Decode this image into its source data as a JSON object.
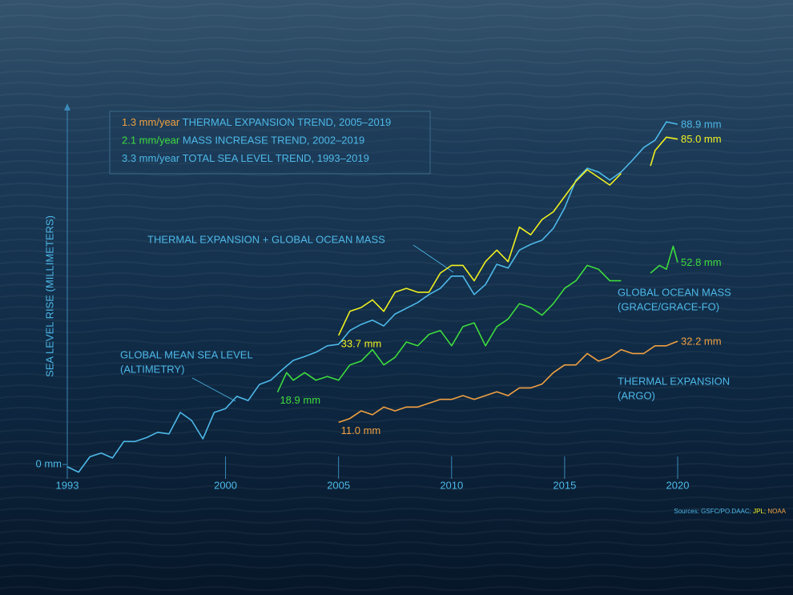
{
  "chart_data": {
    "type": "line",
    "y_label": "SEA LEVEL RISE (MILLIMETERS)",
    "xlim": [
      1993,
      2020
    ],
    "xticks": [
      1993,
      2000,
      2005,
      2010,
      2015,
      2020
    ],
    "ylim": [
      -5,
      94
    ],
    "yticks": [
      {
        "value": 0,
        "label": "0 mm"
      }
    ],
    "legend": [
      {
        "rate": "1.3 mm/year",
        "text": " THERMAL EXPANSION TREND, 2005–2019",
        "color": "#f0a040"
      },
      {
        "rate": "2.1 mm/year",
        "text": " MASS INCREASE TREND, 2002–2019",
        "color": "#3ddc3d"
      },
      {
        "rate": "3.3 mm/year",
        "text": " TOTAL SEA LEVEL TREND, 1993–2019",
        "color": "#4db8e8"
      }
    ],
    "sources": [
      {
        "text": "Sources: GSFC/PO.DAAC;",
        "color": "#4db8e8"
      },
      {
        "text": " JPL;",
        "color": "#f0f020"
      },
      {
        "text": " NOAA",
        "color": "#f0a040"
      }
    ],
    "series": [
      {
        "name": "GLOBAL MEAN SEA LEVEL",
        "source": "(ALTIMETRY)",
        "color": "#4db8e8",
        "x": [
          1993,
          1993.5,
          1994,
          1994.5,
          1995,
          1995.5,
          1996,
          1996.5,
          1997,
          1997.5,
          1998,
          1998.5,
          1999,
          1999.5,
          2000,
          2000.5,
          2001,
          2001.5,
          2002,
          2002.5,
          2003,
          2003.5,
          2004,
          2004.5,
          2005,
          2005.5,
          2006,
          2006.5,
          2007,
          2007.5,
          2008,
          2008.5,
          2009,
          2009.5,
          2010,
          2010.5,
          2011,
          2011.5,
          2012,
          2012.5,
          2013,
          2013.5,
          2014,
          2014.5,
          2015,
          2015.5,
          2016,
          2016.5,
          2017,
          2017.5,
          2018,
          2018.5,
          2019,
          2019.5,
          2020
        ],
        "values": [
          -0.6,
          -2,
          2,
          3,
          1.7,
          6,
          6,
          7,
          8.4,
          8,
          13.6,
          11.5,
          6.7,
          13.6,
          14.6,
          17.8,
          16.7,
          20.9,
          22,
          24.7,
          27.2,
          28.2,
          29.3,
          31,
          31.4,
          35,
          36.6,
          37.7,
          36.2,
          39.3,
          40.8,
          42.3,
          44.4,
          46,
          49.2,
          49.2,
          44.4,
          47,
          52.3,
          51.3,
          56,
          57.5,
          58.6,
          61.7,
          67,
          74.3,
          77.4,
          76.4,
          74.3,
          76.4,
          79.5,
          82.8,
          84.7,
          89.5,
          88.9
        ],
        "value_labels": [
          null,
          null,
          null,
          null,
          null,
          null,
          null,
          null,
          null,
          null,
          null,
          null,
          null,
          null,
          null,
          null,
          null,
          null,
          null,
          null,
          null,
          null,
          null,
          null,
          null,
          null,
          null,
          null,
          null,
          null,
          null,
          null,
          null,
          null,
          null,
          null,
          null,
          null,
          null,
          null,
          null,
          null,
          null,
          null,
          null,
          null,
          null,
          null,
          null,
          null,
          null,
          null,
          null,
          null,
          "88.9 mm"
        ]
      },
      {
        "name": "THERMAL EXPANSION + GLOBAL OCEAN MASS",
        "color": "#f0f020",
        "x": [
          2005,
          2005.5,
          2006,
          2006.5,
          2007,
          2007.5,
          2008,
          2008.5,
          2009,
          2009.5,
          2010,
          2010.5,
          2011,
          2011.5,
          2012,
          2012.5,
          2013,
          2013.5,
          2014,
          2014.5,
          2015,
          2015.5,
          2016,
          2016.5,
          2017,
          2017.5,
          2018.2,
          2018.8,
          2019,
          2019.5,
          2020
        ],
        "values": [
          33.7,
          40,
          41,
          43,
          40,
          45,
          46,
          45,
          45,
          50,
          52,
          52,
          48,
          53,
          56,
          53,
          62,
          60,
          64,
          66,
          70,
          74,
          77,
          75,
          73,
          76,
          null,
          78,
          82,
          85.5,
          85.0
        ],
        "value_labels": [
          "33.7 mm",
          null,
          null,
          null,
          null,
          null,
          null,
          null,
          null,
          null,
          null,
          null,
          null,
          null,
          null,
          null,
          null,
          null,
          null,
          null,
          null,
          null,
          null,
          null,
          null,
          null,
          null,
          null,
          null,
          null,
          "85.0 mm"
        ]
      },
      {
        "name": "GLOBAL OCEAN MASS",
        "source": "(GRACE/GRACE-FO)",
        "color": "#3ddc3d",
        "x": [
          2002.3,
          2002.7,
          2003,
          2003.5,
          2004,
          2004.5,
          2005,
          2005.5,
          2006,
          2006.5,
          2007,
          2007.5,
          2008,
          2008.5,
          2009,
          2009.5,
          2010,
          2010.5,
          2011,
          2011.5,
          2012,
          2012.5,
          2013,
          2013.5,
          2014,
          2014.5,
          2015,
          2015.5,
          2016,
          2016.5,
          2017,
          2017.5,
          2018.2,
          2018.8,
          2019.2,
          2019.5,
          2019.8,
          2020
        ],
        "values": [
          18.9,
          24,
          22,
          24,
          22,
          23,
          22,
          26,
          27,
          30,
          26,
          28,
          32,
          31,
          34,
          35,
          31,
          36,
          37,
          31,
          36,
          38,
          42,
          41,
          39,
          42,
          46,
          48,
          52,
          51,
          48,
          48,
          null,
          50,
          52,
          51,
          57,
          52.8
        ],
        "value_labels": [
          "18.9 mm",
          null,
          null,
          null,
          null,
          null,
          null,
          null,
          null,
          null,
          null,
          null,
          null,
          null,
          null,
          null,
          null,
          null,
          null,
          null,
          null,
          null,
          null,
          null,
          null,
          null,
          null,
          null,
          null,
          null,
          null,
          null,
          null,
          null,
          null,
          null,
          null,
          "52.8 mm"
        ]
      },
      {
        "name": "THERMAL EXPANSION",
        "source": "(ARGO)",
        "color": "#f0a040",
        "x": [
          2005,
          2005.5,
          2006,
          2006.5,
          2007,
          2007.5,
          2008,
          2008.5,
          2009,
          2009.5,
          2010,
          2010.5,
          2011,
          2011.5,
          2012,
          2012.5,
          2013,
          2013.5,
          2014,
          2014.5,
          2015,
          2015.5,
          2016,
          2016.5,
          2017,
          2017.5,
          2018,
          2018.5,
          2019,
          2019.5,
          2020
        ],
        "values": [
          11.0,
          12,
          14,
          13,
          15,
          14,
          15,
          15,
          16,
          17,
          17,
          18,
          17,
          18,
          19,
          18,
          20,
          20,
          21,
          24,
          26,
          26,
          29,
          27,
          28,
          30,
          29,
          29,
          31,
          31,
          32.2
        ],
        "value_labels": [
          "11.0 mm",
          null,
          null,
          null,
          null,
          null,
          null,
          null,
          null,
          null,
          null,
          null,
          null,
          null,
          null,
          null,
          null,
          null,
          null,
          null,
          null,
          null,
          null,
          null,
          null,
          null,
          null,
          null,
          null,
          null,
          "32.2 mm"
        ]
      }
    ]
  }
}
